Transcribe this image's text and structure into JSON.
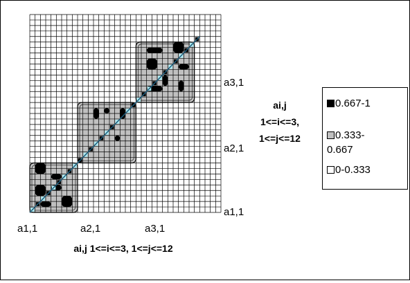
{
  "chart_data": {
    "type": "heatmap",
    "xlabel": "ai,j 1<=i<=3, 1<=j<=12",
    "ylabel_lines": [
      "ai,j",
      "1<=i<=3,",
      "1<=j<=12"
    ],
    "x_tick_labels": [
      "a1,1",
      "a2,1",
      "a3,1"
    ],
    "y_tick_labels": [
      "a1,1",
      "a2,1",
      "a3,1"
    ],
    "grid_cells": 36,
    "grid": true,
    "blocks": [
      {
        "name": "a1",
        "range": [
          1,
          9
        ],
        "shade": "0.333-0.667"
      },
      {
        "name": "a2",
        "range": [
          10,
          20
        ],
        "shade": "0.333-0.667"
      },
      {
        "name": "a3",
        "range": [
          21,
          31
        ],
        "shade": "0.333-0.667"
      }
    ],
    "diagonal_value": "0.667-1",
    "legend": {
      "position": "right",
      "entries": [
        {
          "label": "0.667-1",
          "color": "#000000"
        },
        {
          "label_lines": [
            "0.333-",
            "0.667"
          ],
          "color": "#c0c0c0"
        },
        {
          "label": "0-0.333",
          "color": "#ffffff"
        }
      ]
    },
    "colors": {
      "high": "#000000",
      "mid": "#c0c0c0",
      "low": "#ffffff",
      "diagonal": "#aee9f0"
    }
  }
}
